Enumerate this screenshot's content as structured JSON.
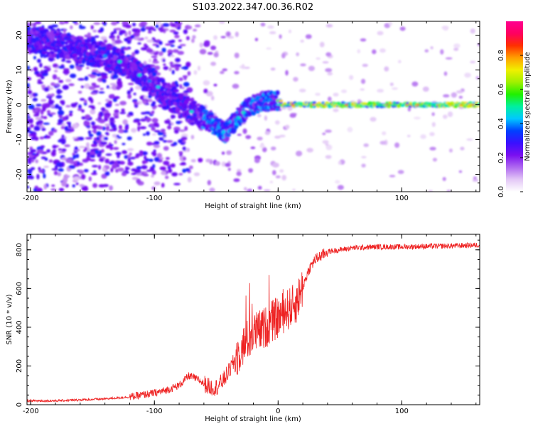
{
  "figure": {
    "title": "S103.2022.347.00.36.R02"
  },
  "chart_data": [
    {
      "type": "heatmap",
      "xlabel": "Height of straight line (km)",
      "ylabel": "Frequency (Hz)",
      "xlim": [
        -203,
        163
      ],
      "ylim": [
        -25,
        24
      ],
      "x_ticks": [
        -200,
        -100,
        0,
        100
      ],
      "y_ticks": [
        -20,
        -10,
        0,
        10,
        20
      ],
      "ridge": {
        "x": [
          -200,
          -175,
          -150,
          -140,
          -125,
          -110,
          -100,
          -90,
          -80,
          -70,
          -60,
          -50,
          -43,
          -38,
          -30,
          -25,
          -20,
          -10,
          0,
          5,
          20,
          50,
          100,
          163
        ],
        "y": [
          19,
          17,
          15,
          14,
          12,
          8,
          6,
          3,
          0,
          -2,
          -4,
          -6,
          -8,
          -6,
          -3,
          -1,
          0,
          1,
          1,
          0,
          0,
          0,
          0,
          0
        ]
      },
      "colorbar": {
        "label": "Normalized spectral amplitude",
        "range": [
          0.0,
          1.0
        ],
        "ticks": [
          "0.0",
          "0.2",
          "0.4",
          "0.6",
          "0.8"
        ],
        "colors": [
          "#ffffff",
          "#e3c8f6",
          "#b06af0",
          "#7a10f0",
          "#3a10ff",
          "#0040ff",
          "#00c8ff",
          "#00f0a0",
          "#20f000",
          "#a0f000",
          "#f0f000",
          "#ffa000",
          "#ff3000",
          "#ff0060",
          "#ff0090"
        ]
      }
    },
    {
      "type": "line",
      "xlabel": "Height of straight line (km)",
      "ylabel": "SNR (10 * v/v)",
      "xlim": [
        -203,
        163
      ],
      "ylim": [
        0,
        880
      ],
      "x_ticks": [
        -200,
        -100,
        0,
        100
      ],
      "y_ticks": [
        0,
        200,
        400,
        600,
        800
      ],
      "series": [
        {
          "color": "#ee2222",
          "x": [
            -203,
            -180,
            -160,
            -140,
            -120,
            -100,
            -90,
            -80,
            -72,
            -65,
            -60,
            -55,
            -50,
            -45,
            -40,
            -35,
            -30,
            -25,
            -20,
            -15,
            -10,
            -5,
            0,
            5,
            10,
            15,
            20,
            25,
            30,
            40,
            50,
            60,
            80,
            100,
            120,
            140,
            163
          ],
          "y": [
            20,
            20,
            25,
            30,
            40,
            60,
            75,
            100,
            150,
            130,
            110,
            90,
            90,
            120,
            170,
            230,
            290,
            330,
            370,
            380,
            400,
            430,
            450,
            480,
            500,
            530,
            610,
            700,
            750,
            790,
            800,
            810,
            815,
            815,
            818,
            820,
            825
          ]
        }
      ]
    }
  ]
}
